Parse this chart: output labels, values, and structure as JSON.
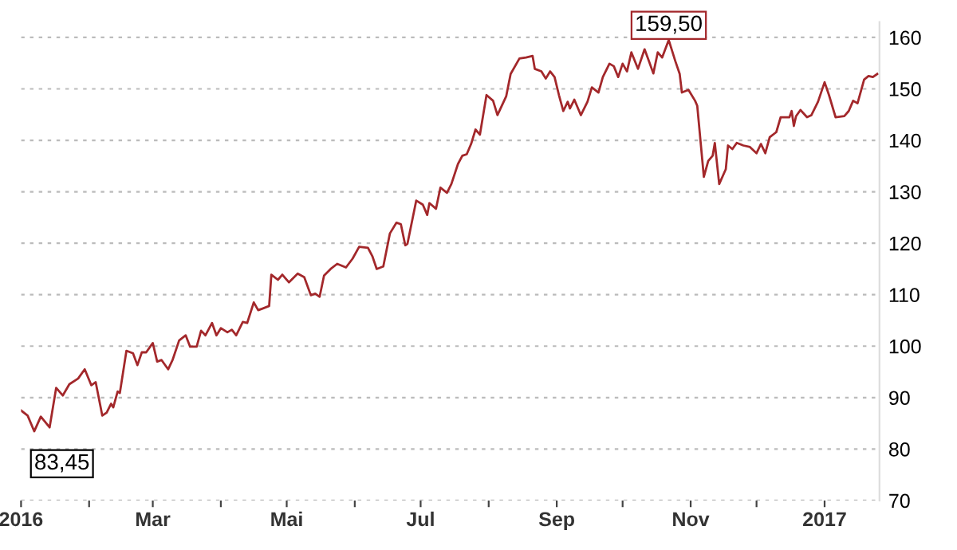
{
  "chart_data": {
    "type": "line",
    "x": [
      "2016-01-01",
      "2016-01-04",
      "2016-01-07",
      "2016-01-10",
      "2016-01-14",
      "2016-01-17",
      "2016-01-20",
      "2016-01-23",
      "2016-01-27",
      "2016-01-30",
      "2016-02-02",
      "2016-02-04",
      "2016-02-07",
      "2016-02-09",
      "2016-02-11",
      "2016-02-12",
      "2016-02-14",
      "2016-02-15",
      "2016-02-18",
      "2016-02-21",
      "2016-02-23",
      "2016-02-25",
      "2016-02-27",
      "2016-03-01",
      "2016-03-03",
      "2016-03-05",
      "2016-03-08",
      "2016-03-10",
      "2016-03-13",
      "2016-03-16",
      "2016-03-18",
      "2016-03-21",
      "2016-03-23",
      "2016-03-25",
      "2016-03-28",
      "2016-03-30",
      "2016-04-01",
      "2016-04-04",
      "2016-04-06",
      "2016-04-08",
      "2016-04-11",
      "2016-04-13",
      "2016-04-16",
      "2016-04-18",
      "2016-04-20",
      "2016-04-23",
      "2016-04-24",
      "2016-04-27",
      "2016-04-29",
      "2016-05-02",
      "2016-05-06",
      "2016-05-09",
      "2016-05-12",
      "2016-05-14",
      "2016-05-16",
      "2016-05-18",
      "2016-05-21",
      "2016-05-24",
      "2016-05-28",
      "2016-05-31",
      "2016-06-03",
      "2016-06-07",
      "2016-06-09",
      "2016-06-11",
      "2016-06-14",
      "2016-06-17",
      "2016-06-20",
      "2016-06-22",
      "2016-06-24",
      "2016-06-25",
      "2016-06-29",
      "2016-07-02",
      "2016-07-04",
      "2016-07-05",
      "2016-07-08",
      "2016-07-10",
      "2016-07-13",
      "2016-07-15",
      "2016-07-18",
      "2016-07-20",
      "2016-07-22",
      "2016-07-24",
      "2016-07-26",
      "2016-07-28",
      "2016-07-31",
      "2016-08-03",
      "2016-08-05",
      "2016-08-09",
      "2016-08-11",
      "2016-08-15",
      "2016-08-18",
      "2016-08-21",
      "2016-08-22",
      "2016-08-25",
      "2016-08-27",
      "2016-08-29",
      "2016-08-31",
      "2016-09-02",
      "2016-09-04",
      "2016-09-06",
      "2016-09-07",
      "2016-09-09",
      "2016-09-12",
      "2016-09-15",
      "2016-09-17",
      "2016-09-20",
      "2016-09-22",
      "2016-09-25",
      "2016-09-27",
      "2016-09-29",
      "2016-10-01",
      "2016-10-03",
      "2016-10-05",
      "2016-10-08",
      "2016-10-11",
      "2016-10-13",
      "2016-10-15",
      "2016-10-17",
      "2016-10-19",
      "2016-10-22",
      "2016-10-25",
      "2016-10-27",
      "2016-10-28",
      "2016-10-31",
      "2016-11-03",
      "2016-11-04",
      "2016-11-07",
      "2016-11-09",
      "2016-11-11",
      "2016-11-12",
      "2016-11-14",
      "2016-11-17",
      "2016-11-18",
      "2016-11-20",
      "2016-11-22",
      "2016-11-25",
      "2016-11-28",
      "2016-12-01",
      "2016-12-03",
      "2016-12-05",
      "2016-12-07",
      "2016-12-10",
      "2016-12-12",
      "2016-12-16",
      "2016-12-17",
      "2016-12-18",
      "2016-12-19",
      "2016-12-21",
      "2016-12-24",
      "2016-12-26",
      "2016-12-29",
      "2017-01-01",
      "2017-01-03",
      "2017-01-06",
      "2017-01-10",
      "2017-01-12",
      "2017-01-14",
      "2017-01-16",
      "2017-01-19",
      "2017-01-21",
      "2017-01-23",
      "2017-01-25"
    ],
    "series": [
      {
        "color": "#a3282b",
        "values": [
          87.5,
          86.5,
          83.45,
          86.3,
          84.2,
          91.9,
          90.4,
          92.6,
          93.7,
          95.5,
          92.4,
          93.0,
          86.5,
          87.1,
          88.8,
          88.1,
          91.2,
          90.9,
          99.1,
          98.6,
          96.3,
          98.8,
          98.8,
          100.6,
          97.0,
          97.3,
          95.5,
          97.3,
          101.1,
          102.1,
          99.9,
          99.9,
          103.0,
          102.1,
          104.5,
          102.1,
          103.5,
          102.7,
          103.2,
          102.1,
          104.7,
          104.5,
          108.5,
          107.0,
          107.3,
          107.8,
          113.9,
          112.9,
          113.9,
          112.4,
          114.1,
          113.4,
          109.9,
          110.2,
          109.6,
          113.7,
          115.0,
          116.0,
          115.3,
          117.0,
          119.3,
          119.1,
          117.5,
          115.0,
          115.5,
          121.9,
          124.0,
          123.7,
          119.6,
          119.9,
          128.3,
          127.5,
          125.5,
          127.8,
          126.7,
          130.8,
          129.8,
          131.5,
          135.4,
          137.0,
          137.3,
          139.3,
          142.1,
          141.1,
          148.8,
          147.7,
          144.9,
          148.6,
          152.9,
          155.9,
          156.1,
          156.4,
          153.9,
          153.4,
          152.0,
          153.4,
          152.3,
          148.8,
          145.7,
          147.5,
          146.2,
          147.9,
          144.9,
          147.5,
          150.3,
          149.3,
          152.3,
          154.9,
          154.4,
          152.3,
          154.9,
          153.4,
          157.1,
          153.9,
          157.7,
          155.4,
          153.0,
          157.1,
          156.1,
          159.5,
          155.4,
          152.9,
          149.3,
          149.8,
          147.7,
          146.7,
          132.9,
          136.0,
          137.0,
          139.5,
          131.5,
          134.4,
          139.0,
          138.3,
          139.5,
          139.0,
          138.7,
          137.5,
          139.3,
          137.5,
          140.6,
          141.6,
          144.5,
          144.5,
          145.7,
          142.8,
          144.7,
          145.9,
          144.5,
          144.9,
          147.5,
          151.3,
          148.8,
          144.5,
          144.7,
          145.7,
          147.7,
          147.2,
          151.8,
          152.5,
          152.3,
          152.9
        ]
      }
    ],
    "xlim": [
      "2016-01-01",
      "2017-01-26"
    ],
    "xticks": [
      {
        "value": "2016-01-01",
        "label": "2016"
      },
      {
        "value": "2016-02-01",
        "label": null
      },
      {
        "value": "2016-03-01",
        "label": "Mar"
      },
      {
        "value": "2016-04-01",
        "label": null
      },
      {
        "value": "2016-05-01",
        "label": "Mai"
      },
      {
        "value": "2016-06-01",
        "label": null
      },
      {
        "value": "2016-07-01",
        "label": "Jul"
      },
      {
        "value": "2016-08-01",
        "label": null
      },
      {
        "value": "2016-09-01",
        "label": "Sep"
      },
      {
        "value": "2016-10-01",
        "label": null
      },
      {
        "value": "2016-11-01",
        "label": "Nov"
      },
      {
        "value": "2016-12-01",
        "label": null
      },
      {
        "value": "2017-01-01",
        "label": "2017"
      }
    ],
    "ylim": [
      70,
      163
    ],
    "yticks": [
      70,
      80,
      90,
      100,
      110,
      120,
      130,
      140,
      150,
      160
    ],
    "grid": "y",
    "line_style": "solid",
    "marker": "none",
    "annotations": [
      {
        "text": "83,45",
        "x": "2016-01-07",
        "y": 83.45
      },
      {
        "text": "159,50",
        "x": "2016-10-22",
        "y": 159.5
      }
    ]
  }
}
